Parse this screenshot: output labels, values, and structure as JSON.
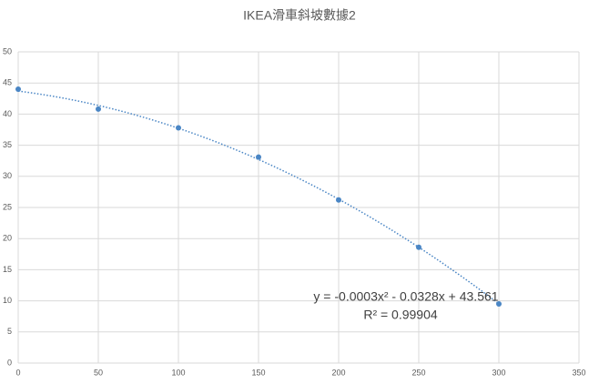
{
  "chart_data": {
    "type": "scatter",
    "title": "IKEA滑車斜坡數據2",
    "x": [
      0,
      50,
      100,
      150,
      200,
      250,
      300
    ],
    "values": [
      44,
      40.8,
      37.8,
      33.1,
      26.2,
      18.6,
      9.5
    ],
    "color": "#4a86c5",
    "trendline": true,
    "annotations": [
      "y = -0.0003x² - 0.0328x + 43.561",
      "R² = 0.99904"
    ],
    "xlim": [
      0,
      350
    ],
    "xticks": [
      0,
      50,
      100,
      150,
      200,
      250,
      300,
      350
    ],
    "ylim": [
      0,
      50
    ],
    "yticks": [
      0,
      5,
      10,
      15,
      20,
      25,
      30,
      35,
      40,
      45,
      50
    ],
    "grid": true
  }
}
